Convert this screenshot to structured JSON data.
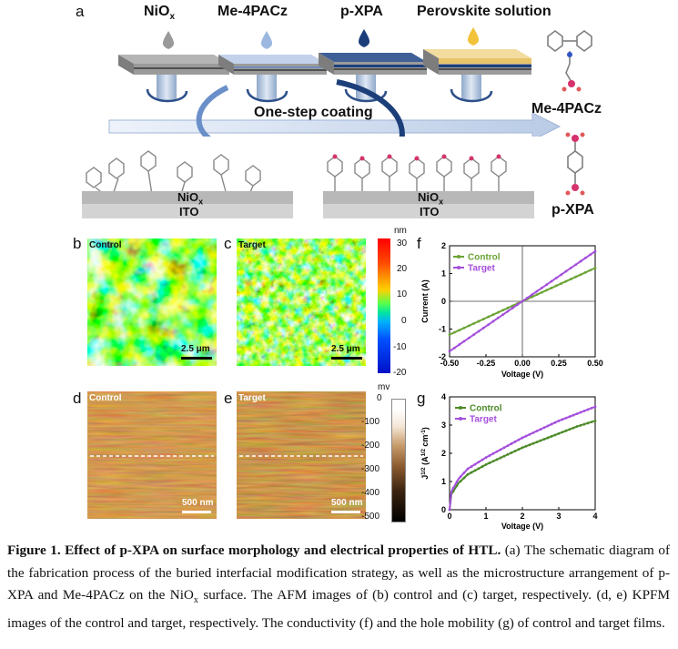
{
  "panel_a": {
    "letter": "a",
    "step_labels": [
      "NiO",
      "Me-4PACz",
      "p-XPA",
      "Perovskite solution"
    ],
    "nio_subscript": "x",
    "coating_label": "One-step coating",
    "layer_left_top": "NiO",
    "layer_left_sub": "x",
    "layer_left_bottom": "ITO",
    "layer_right_top": "NiO",
    "layer_right_sub": "x",
    "layer_right_bottom": "ITO",
    "molecule_1": "Me-4PACz",
    "molecule_2": "p-XPA",
    "drop_colors": [
      "#9a9a9a",
      "#9db8e0",
      "#1c3f7a",
      "#f2c23a"
    ]
  },
  "panel_b": {
    "letter": "b",
    "label": "Control",
    "scale": "2.5 μm"
  },
  "panel_c": {
    "letter": "c",
    "label": "Target",
    "scale": "2.5 μm"
  },
  "colorbar_afm": {
    "unit": "nm",
    "ticks": [
      "30",
      "20",
      "10",
      "0",
      "-10",
      "-20"
    ]
  },
  "panel_d": {
    "letter": "d",
    "label": "Control",
    "scale": "500 nm"
  },
  "panel_e": {
    "letter": "e",
    "label": "Target",
    "scale": "500 nm"
  },
  "colorbar_kpfm": {
    "unit": "mv",
    "ticks": [
      "0",
      "-100",
      "-200",
      "-300",
      "-400",
      "-500"
    ]
  },
  "panel_f": {
    "letter": "f"
  },
  "panel_g": {
    "letter": "g"
  },
  "chart_data": [
    {
      "type": "line",
      "panel": "f",
      "xlabel": "Voltage (V)",
      "ylabel": "Current (A)",
      "xlim": [
        -0.5,
        0.5
      ],
      "ylim": [
        -2,
        2
      ],
      "xticks": [
        "-0.50",
        "-0.25",
        "0.00",
        "0.25",
        "0.50"
      ],
      "yticks": [
        "2",
        "1",
        "0",
        "-1",
        "-2"
      ],
      "series": [
        {
          "name": "Control",
          "color": "#6aa334",
          "x": [
            -0.5,
            0.5
          ],
          "y": [
            -1.2,
            1.2
          ]
        },
        {
          "name": "Target",
          "color": "#a44fdc",
          "x": [
            -0.5,
            0.5
          ],
          "y": [
            -1.8,
            1.8
          ]
        }
      ],
      "legend": "top-left"
    },
    {
      "type": "line",
      "panel": "g",
      "xlabel": "Voltage (V)",
      "ylabel": "J1/2 (A1/2 cm-1)",
      "xlim": [
        0,
        4
      ],
      "ylim": [
        0,
        4
      ],
      "xticks": [
        "0",
        "1",
        "2",
        "3",
        "4"
      ],
      "yticks": [
        "0",
        "1",
        "2",
        "3",
        "4"
      ],
      "series": [
        {
          "name": "Control",
          "color": "#4d8a2a",
          "x": [
            0,
            0.05,
            0.25,
            0.5,
            1,
            1.5,
            2,
            2.5,
            3,
            3.5,
            4
          ],
          "y": [
            0,
            0.55,
            0.95,
            1.25,
            1.6,
            1.9,
            2.2,
            2.45,
            2.7,
            2.95,
            3.15
          ]
        },
        {
          "name": "Target",
          "color": "#a44fdc",
          "x": [
            0,
            0.05,
            0.25,
            0.5,
            1,
            1.5,
            2,
            2.5,
            3,
            3.5,
            4
          ],
          "y": [
            0,
            0.65,
            1.1,
            1.45,
            1.85,
            2.2,
            2.55,
            2.85,
            3.15,
            3.4,
            3.65
          ]
        }
      ],
      "legend": "top-left"
    }
  ],
  "caption": {
    "title": "Figure 1. Effect of p-XPA on surface morphology and electrical properties of HTL.",
    "body_1": " (a) The schematic diagram of the fabrication process of the buried interfacial modification strategy, as well as the microstructure arrangement of p-XPA and Me-4PACz on the NiO",
    "body_sub": "x",
    "body_2": " surface. The AFM images of (b) control and (c) target, respectively. (d, e) KPFM images of the control and target, respectively. The conductivity (f) and the hole mobility (g) of control and target films."
  }
}
